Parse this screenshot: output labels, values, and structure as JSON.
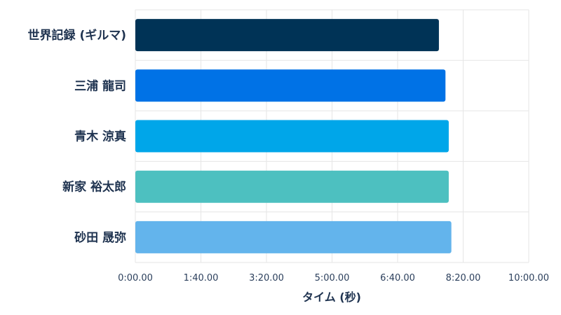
{
  "chart_data": {
    "type": "bar",
    "orientation": "horizontal",
    "categories": [
      "世界記録 (ギルマ)",
      "三浦 龍司",
      "青木 涼真",
      "新家 裕太郎",
      "砂田 晟弥"
    ],
    "values": [
      463.0,
      473.0,
      478.0,
      478.0,
      482.0
    ],
    "colors": [
      "#003356",
      "#0072e6",
      "#00a6e9",
      "#4dc0c0",
      "#63b4ec"
    ],
    "xlabel": "タイム (秒)",
    "ylabel": "",
    "xlim": [
      0,
      600
    ],
    "xticks": [
      0,
      100,
      200,
      300,
      400,
      500,
      600
    ],
    "xtick_labels": [
      "0:00.00",
      "1:40.00",
      "3:20.00",
      "5:00.00",
      "6:40.00",
      "8:20.00",
      "10:00.00"
    ],
    "grid": true,
    "legend": "none"
  }
}
